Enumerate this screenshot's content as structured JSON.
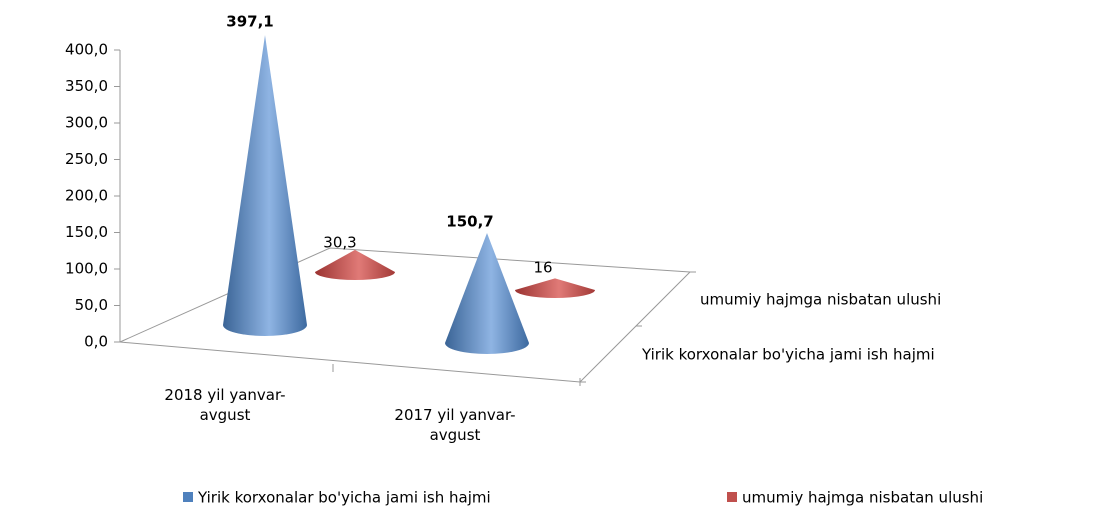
{
  "chart_data": {
    "type": "cone",
    "categories": [
      "2018 yil yanvar-avgust",
      "2017 yil yanvar-avgust"
    ],
    "series": [
      {
        "name": "Yirik korxonalar bo'yicha jami ish hajmi",
        "color": "#4f81bd",
        "values": [
          397.1,
          150.7
        ],
        "value_labels": [
          "397,1",
          "150,7"
        ]
      },
      {
        "name": "umumiy hajmga nisbatan ulushi",
        "color": "#c0504d",
        "values": [
          30.3,
          16
        ],
        "value_labels": [
          "30,3",
          "16"
        ]
      }
    ],
    "ylim": [
      0,
      400
    ],
    "yticks": [
      {
        "value": 0,
        "label": "0,0"
      },
      {
        "value": 50,
        "label": "50,0"
      },
      {
        "value": 100,
        "label": "100,0"
      },
      {
        "value": 150,
        "label": "150,0"
      },
      {
        "value": 200,
        "label": "200,0"
      },
      {
        "value": 250,
        "label": "250,0"
      },
      {
        "value": 300,
        "label": "300,0"
      },
      {
        "value": 350,
        "label": "350,0"
      },
      {
        "value": 400,
        "label": "400,0"
      }
    ],
    "legend": "bottom"
  }
}
